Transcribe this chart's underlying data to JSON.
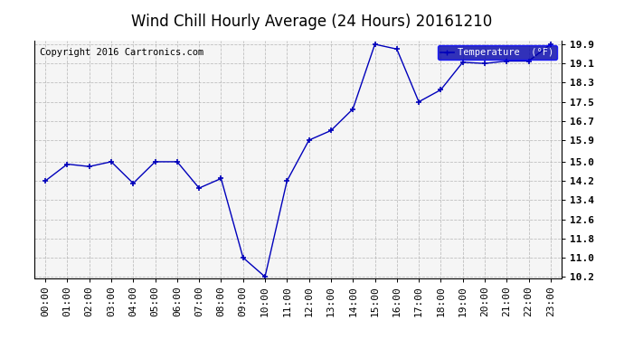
{
  "title": "Wind Chill Hourly Average (24 Hours) 20161210",
  "copyright": "Copyright 2016 Cartronics.com",
  "legend_label": "Temperature  (°F)",
  "x_labels": [
    "00:00",
    "01:00",
    "02:00",
    "03:00",
    "04:00",
    "05:00",
    "06:00",
    "07:00",
    "08:00",
    "09:00",
    "10:00",
    "11:00",
    "12:00",
    "13:00",
    "14:00",
    "15:00",
    "16:00",
    "17:00",
    "18:00",
    "19:00",
    "20:00",
    "21:00",
    "22:00",
    "23:00"
  ],
  "y_values": [
    14.2,
    14.9,
    14.8,
    15.0,
    14.1,
    15.0,
    15.0,
    13.9,
    14.3,
    11.0,
    10.2,
    14.2,
    15.9,
    16.3,
    17.2,
    19.9,
    19.7,
    17.5,
    18.0,
    19.15,
    19.1,
    19.2,
    19.2,
    19.9
  ],
  "ylim_min": 10.2,
  "ylim_max": 19.9,
  "yticks": [
    10.2,
    11.0,
    11.8,
    12.6,
    13.4,
    14.2,
    15.0,
    15.9,
    16.7,
    17.5,
    18.3,
    19.1,
    19.9
  ],
  "line_color": "#0000bb",
  "marker_color": "#0000bb",
  "bg_color": "#ffffff",
  "plot_bg_color": "#f5f5f5",
  "grid_color": "#aaaaaa",
  "title_fontsize": 12,
  "copyright_fontsize": 7.5,
  "tick_fontsize": 8,
  "legend_bg": "#0000aa",
  "legend_text_color": "#ffffff"
}
